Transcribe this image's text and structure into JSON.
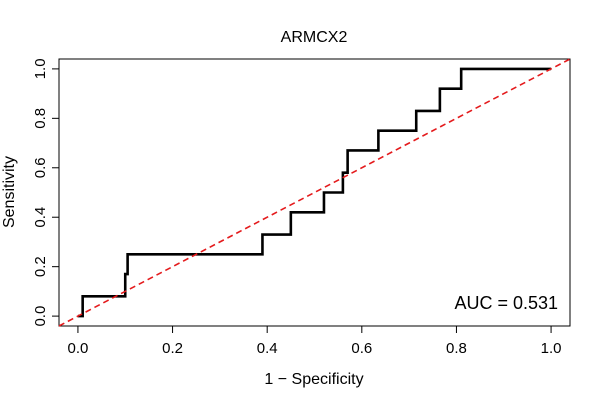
{
  "chart_data": {
    "type": "line",
    "title": "ARMCX2",
    "xlabel": "1 − Specificity",
    "ylabel": "Sensitivity",
    "xlim": [
      -0.04,
      1.04
    ],
    "ylim": [
      -0.04,
      1.04
    ],
    "xticks": [
      "0.0",
      "0.2",
      "0.4",
      "0.6",
      "0.8",
      "1.0"
    ],
    "yticks": [
      "0.0",
      "0.2",
      "0.4",
      "0.6",
      "0.8",
      "1.0"
    ],
    "grid": false,
    "annotation": "AUC = 0.531",
    "series": [
      {
        "style": "step",
        "color": "#000000",
        "points": [
          [
            0.0,
            0.0
          ],
          [
            0.01,
            0.0
          ],
          [
            0.01,
            0.08
          ],
          [
            0.1,
            0.08
          ],
          [
            0.1,
            0.17
          ],
          [
            0.105,
            0.17
          ],
          [
            0.105,
            0.25
          ],
          [
            0.39,
            0.25
          ],
          [
            0.39,
            0.33
          ],
          [
            0.45,
            0.33
          ],
          [
            0.45,
            0.42
          ],
          [
            0.52,
            0.42
          ],
          [
            0.52,
            0.5
          ],
          [
            0.56,
            0.5
          ],
          [
            0.56,
            0.58
          ],
          [
            0.57,
            0.58
          ],
          [
            0.57,
            0.67
          ],
          [
            0.635,
            0.67
          ],
          [
            0.635,
            0.75
          ],
          [
            0.715,
            0.75
          ],
          [
            0.715,
            0.83
          ],
          [
            0.765,
            0.83
          ],
          [
            0.765,
            0.92
          ],
          [
            0.81,
            0.92
          ],
          [
            0.81,
            1.0
          ],
          [
            1.0,
            1.0
          ]
        ]
      },
      {
        "style": "dashed",
        "color": "#e41a1c",
        "points": [
          [
            -0.04,
            -0.04
          ],
          [
            1.04,
            1.04
          ]
        ]
      }
    ]
  }
}
